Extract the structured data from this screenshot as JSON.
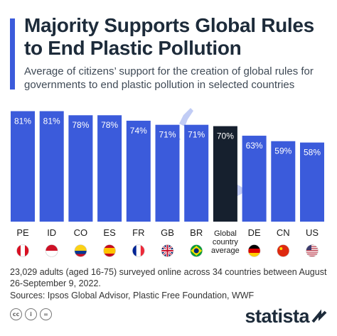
{
  "title": "Majority Supports Global Rules to End Plastic Pollution",
  "subtitle": "Average of citizens’ support for the creation of global rules for governments to end plastic pollution in selected countries",
  "note": "23,029 adults (aged 16-75) surveyed online across 34 countries between August 26-September 9, 2022.",
  "sources": "Sources: Ipsos Global Advisor, Plastic Free Foundation, WWF",
  "logo": "statista",
  "colors": {
    "bar": "#3b5bdb",
    "highlight": "#16202e",
    "accent": "#3b5bdb"
  },
  "icons": [
    "cc-icon",
    "attribution-icon",
    "no-derivatives-icon",
    "statista-logo-icon"
  ],
  "chart_data": {
    "type": "bar",
    "categories": [
      "PE",
      "ID",
      "CO",
      "ES",
      "FR",
      "GB",
      "BR",
      "Global country average",
      "DE",
      "CN",
      "US"
    ],
    "category_lines": [
      [
        "PE"
      ],
      [
        "ID"
      ],
      [
        "CO"
      ],
      [
        "ES"
      ],
      [
        "FR"
      ],
      [
        "GB"
      ],
      [
        "BR"
      ],
      [
        "Global",
        "country",
        "average"
      ],
      [
        "DE"
      ],
      [
        "CN"
      ],
      [
        "US"
      ]
    ],
    "values": [
      81,
      81,
      78,
      78,
      74,
      71,
      71,
      70,
      63,
      59,
      58
    ],
    "data_labels": [
      "81%",
      "81%",
      "78%",
      "78%",
      "74%",
      "71%",
      "71%",
      "70%",
      "63%",
      "59%",
      "58%"
    ],
    "highlight_index": 7,
    "flags": [
      "peru-flag-icon",
      "indonesia-flag-icon",
      "colombia-flag-icon",
      "spain-flag-icon",
      "france-flag-icon",
      "uk-flag-icon",
      "brazil-flag-icon",
      "",
      "germany-flag-icon",
      "china-flag-icon",
      "usa-flag-icon"
    ],
    "ylim": [
      0,
      100
    ],
    "grid": false,
    "legend": "none"
  }
}
